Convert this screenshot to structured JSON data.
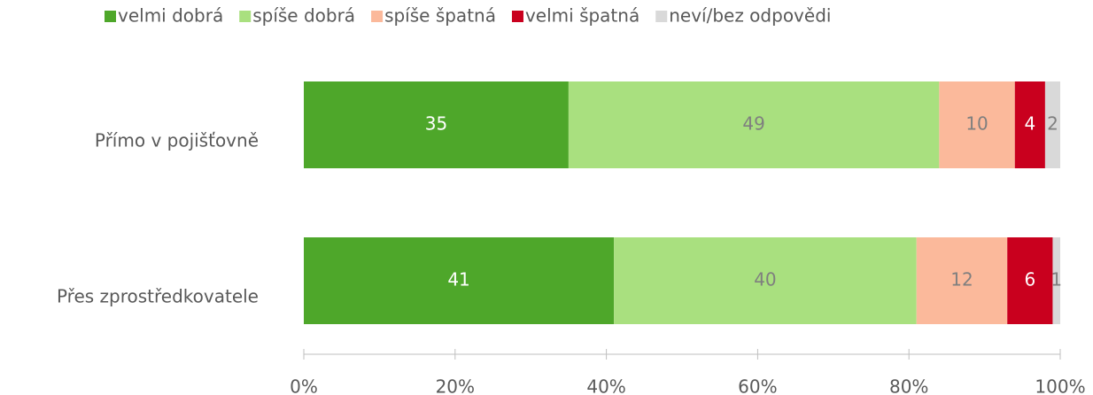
{
  "chart_data": {
    "type": "hbar_stacked",
    "categories": [
      "Přímo v pojišťovně",
      "Přes zprostředkovatele"
    ],
    "series": [
      {
        "name": "velmi dobrá",
        "color": "#4ea72a",
        "values": [
          35,
          41
        ]
      },
      {
        "name": "spíše dobrá",
        "color": "#a9e07f",
        "values": [
          49,
          40
        ]
      },
      {
        "name": "spíše špatná",
        "color": "#fbb99b",
        "values": [
          10,
          12
        ]
      },
      {
        "name": "velmi špatná",
        "color": "#c9001e",
        "values": [
          4,
          6
        ]
      },
      {
        "name": "neví/bez odpovědi",
        "color": "#d9d9d9",
        "values": [
          2,
          1
        ]
      }
    ],
    "xlim": [
      0,
      100
    ],
    "xticks": [
      {
        "value": 0,
        "label": "0%"
      },
      {
        "value": 20,
        "label": "20%"
      },
      {
        "value": 40,
        "label": "40%"
      },
      {
        "value": 60,
        "label": "60%"
      },
      {
        "value": 80,
        "label": "80%"
      },
      {
        "value": 100,
        "label": "100%"
      }
    ],
    "legend": "top"
  }
}
